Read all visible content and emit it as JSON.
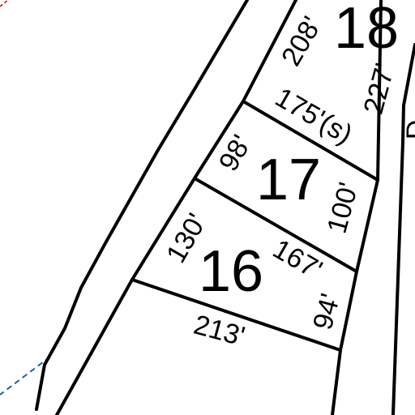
{
  "lots": [
    {
      "number": "18",
      "dimensions": [
        "208'",
        "227'",
        "175'(s)"
      ]
    },
    {
      "number": "17",
      "dimensions": [
        "98'",
        "100'"
      ]
    },
    {
      "number": "16",
      "dimensions": [
        "130'",
        "167'",
        "94'",
        "213'"
      ]
    }
  ],
  "edge_label": "D"
}
